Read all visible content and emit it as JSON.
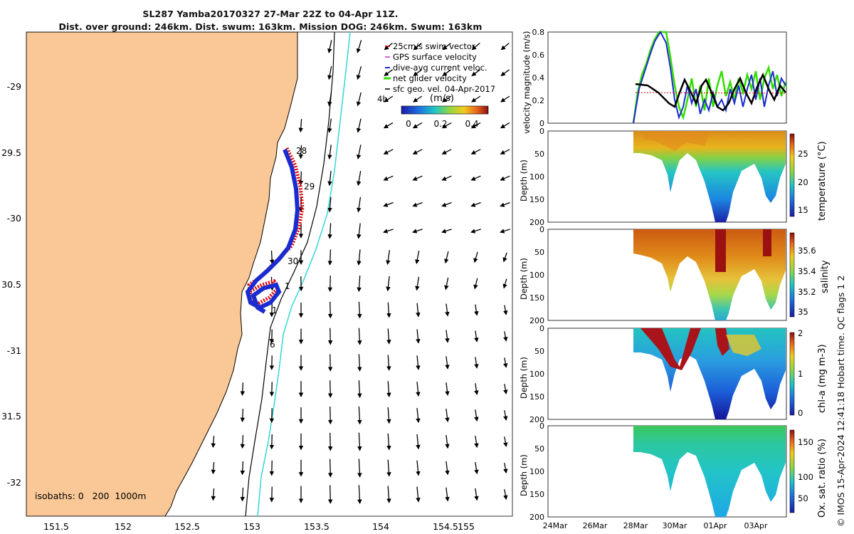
{
  "header": {
    "title_line1": "SL287 Yamba20170327 27-Mar 22Z to 04-Apr 11Z.",
    "title_line2": "Dist. over ground: 246km. Dist. swum: 163km. Mission DOG: 246km. Swum: 163km"
  },
  "map": {
    "lat_ticks": [
      "-29",
      "29.5",
      "-30",
      "30.5",
      "-31",
      "31.5",
      "-32"
    ],
    "lon_ticks": [
      "151.5",
      "152",
      "152.5",
      "153",
      "153.5",
      "154",
      "154.5",
      "155"
    ],
    "legend": {
      "items": [
        {
          "label": "25cm/s swim vector",
          "color": "#e00000"
        },
        {
          "label": "GPS surface velocity",
          "color": "#cc33cc"
        },
        {
          "label": "dive-avg current veloc.",
          "color": "#1a2bd0"
        },
        {
          "label": "net glider velocity",
          "color": "#33dd00"
        },
        {
          "label": "sfc geo. vel. 04-Apr-2017",
          "color": "#000000"
        }
      ],
      "hours_label": "4h",
      "colorbar_units": "(m/s)",
      "colorbar_ticks": [
        "0",
        "0.2",
        "0.4"
      ]
    },
    "day_labels": [
      "28",
      "29",
      "30",
      "1",
      "1",
      "6"
    ],
    "isobaths_label": "isobaths: 0   200  1000m",
    "colors": {
      "land": "#f9c896",
      "isobath_200": "#000000",
      "isobath_1000": "#33d6d6"
    }
  },
  "panels": {
    "velocity": {
      "ylabel": "velocity magnitude (m/s)",
      "yticks": [
        "0",
        "0.2",
        "0.4",
        "0.6",
        "0.8"
      ]
    },
    "depth_ylabel": "Depth (m)",
    "depth_ticks": [
      "0",
      "50",
      "100",
      "150",
      "200"
    ],
    "temperature": {
      "label": "temperature (°C)",
      "ticks": [
        "25",
        "20",
        "15"
      ]
    },
    "salinity": {
      "label": "salinity",
      "ticks": [
        "35.6",
        "35.4",
        "35.2",
        "35"
      ]
    },
    "chla": {
      "label": "chl-a (mg m-3)",
      "ticks": [
        "2",
        "1",
        "0"
      ]
    },
    "oxygen": {
      "label": "Ox. sat. ratio (%)",
      "ticks": [
        "150",
        "100",
        "50"
      ]
    },
    "time_ticks": [
      "24Mar",
      "26Mar",
      "28Mar",
      "30Mar",
      "01Apr",
      "03Apr"
    ]
  },
  "credit": "© IMOS 15-Apr-2024 12:41:18 Hobart time. QC flags 1  2"
}
